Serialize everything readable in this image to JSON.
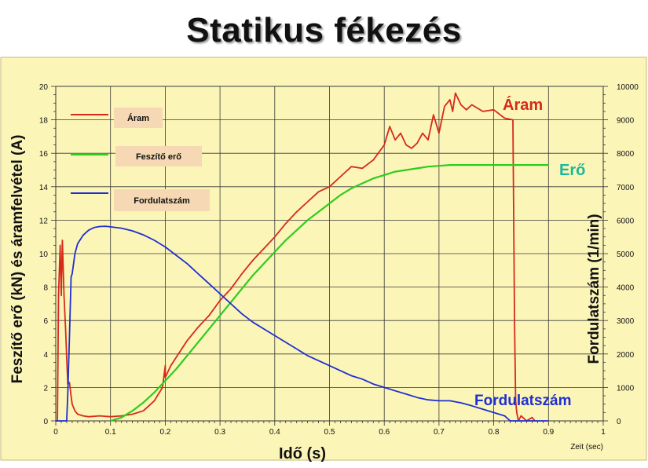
{
  "title": "Statikus fékezés",
  "colors": {
    "panel": "#fcf5b8",
    "plot": "#fcf5b8",
    "grid": "#3a3a3a",
    "legend_box": "#f6d8b4",
    "aram": "#d62a1a",
    "ero": "#2ecc1e",
    "ford": "#1f2fd0",
    "label_ero": "#1cb89a"
  },
  "chart_data": {
    "type": "line",
    "xlabel": "Idő (s)",
    "xlabel_unit": "Zeit (sec)",
    "ylabel_left": "Feszítő erő (kN) és áramfelvétel (A)",
    "ylabel_right": "Fordulatszám (1/min)",
    "xlim": [
      0,
      1
    ],
    "ylim_left": [
      0,
      20
    ],
    "ylim_right": [
      0,
      10000
    ],
    "x_ticks": [
      "0",
      "0.1",
      "0.2",
      "0.3",
      "0.4",
      "0.5",
      "0.6",
      "0.7",
      "0.8",
      "0.9",
      "1"
    ],
    "y_left_ticks": [
      "0",
      "2",
      "4",
      "6",
      "8",
      "10",
      "12",
      "14",
      "16",
      "18",
      "20"
    ],
    "y_right_ticks": [
      "0",
      "1000",
      "2000",
      "3000",
      "4000",
      "5000",
      "6000",
      "7000",
      "8000",
      "9000",
      "10000"
    ],
    "grid": true,
    "legend_position": "top-left",
    "legend": [
      "Áram",
      "Feszítő erő",
      "Fordulatszám"
    ],
    "annotations": [
      "Áram",
      "Erő",
      "Fordulatszám"
    ],
    "series": [
      {
        "name": "Áram",
        "axis": "left",
        "x": [
          0,
          0.003,
          0.005,
          0.008,
          0.01,
          0.012,
          0.015,
          0.018,
          0.02,
          0.022,
          0.025,
          0.028,
          0.03,
          0.035,
          0.04,
          0.05,
          0.06,
          0.08,
          0.1,
          0.12,
          0.14,
          0.16,
          0.18,
          0.195,
          0.2,
          0.2,
          0.21,
          0.22,
          0.24,
          0.26,
          0.28,
          0.3,
          0.32,
          0.34,
          0.36,
          0.38,
          0.4,
          0.42,
          0.44,
          0.46,
          0.48,
          0.5,
          0.52,
          0.54,
          0.56,
          0.58,
          0.6,
          0.61,
          0.62,
          0.63,
          0.64,
          0.65,
          0.66,
          0.67,
          0.68,
          0.69,
          0.7,
          0.71,
          0.72,
          0.725,
          0.73,
          0.74,
          0.75,
          0.76,
          0.78,
          0.8,
          0.82,
          0.835,
          0.838,
          0.84,
          0.842,
          0.845,
          0.85,
          0.86,
          0.87,
          0.875
        ],
        "values": [
          0,
          0,
          7.5,
          10.5,
          7.5,
          10.8,
          7.5,
          5.5,
          3.8,
          2.2,
          2.3,
          1.5,
          1.0,
          0.6,
          0.4,
          0.3,
          0.25,
          0.3,
          0.25,
          0.3,
          0.4,
          0.6,
          1.2,
          2.0,
          3.3,
          2.6,
          3.3,
          3.8,
          4.8,
          5.6,
          6.3,
          7.2,
          7.9,
          8.8,
          9.6,
          10.3,
          11.0,
          11.8,
          12.5,
          13.1,
          13.7,
          14.0,
          14.6,
          15.2,
          15.1,
          15.6,
          16.5,
          17.6,
          16.8,
          17.2,
          16.5,
          16.3,
          16.6,
          17.2,
          16.8,
          18.3,
          17.2,
          18.8,
          19.2,
          18.5,
          19.6,
          18.9,
          18.6,
          18.9,
          18.5,
          18.6,
          18.1,
          18.0,
          5.8,
          1.2,
          0.5,
          0.0,
          0.3,
          0.0,
          0.2,
          0.0
        ]
      },
      {
        "name": "Feszítő erő",
        "axis": "left",
        "x": [
          0.1,
          0.12,
          0.14,
          0.16,
          0.18,
          0.2,
          0.22,
          0.24,
          0.26,
          0.28,
          0.3,
          0.32,
          0.34,
          0.36,
          0.38,
          0.4,
          0.42,
          0.44,
          0.46,
          0.48,
          0.5,
          0.52,
          0.54,
          0.56,
          0.58,
          0.6,
          0.62,
          0.64,
          0.66,
          0.68,
          0.7,
          0.72,
          0.74,
          0.76,
          0.78,
          0.8,
          0.82,
          0.84,
          0.86,
          0.88,
          0.9
        ],
        "values": [
          0.0,
          0.2,
          0.6,
          1.1,
          1.7,
          2.4,
          3.1,
          3.9,
          4.7,
          5.5,
          6.3,
          7.1,
          7.9,
          8.7,
          9.4,
          10.1,
          10.8,
          11.4,
          12.0,
          12.5,
          13.0,
          13.5,
          13.9,
          14.2,
          14.5,
          14.7,
          14.9,
          15.0,
          15.1,
          15.2,
          15.25,
          15.3,
          15.3,
          15.3,
          15.3,
          15.3,
          15.3,
          15.3,
          15.3,
          15.3,
          15.3
        ]
      },
      {
        "name": "Fordulatszám",
        "axis": "right",
        "x": [
          0,
          0.02,
          0.022,
          0.025,
          0.028,
          0.03,
          0.035,
          0.04,
          0.05,
          0.06,
          0.07,
          0.08,
          0.09,
          0.1,
          0.12,
          0.14,
          0.16,
          0.18,
          0.2,
          0.22,
          0.24,
          0.26,
          0.28,
          0.3,
          0.32,
          0.34,
          0.36,
          0.38,
          0.4,
          0.42,
          0.44,
          0.46,
          0.48,
          0.5,
          0.52,
          0.54,
          0.56,
          0.58,
          0.6,
          0.62,
          0.64,
          0.66,
          0.68,
          0.7,
          0.72,
          0.74,
          0.76,
          0.78,
          0.8,
          0.82,
          0.83,
          0.84,
          0.85,
          0.9
        ],
        "values": [
          0,
          0,
          800,
          2500,
          4300,
          4400,
          5000,
          5300,
          5550,
          5700,
          5780,
          5810,
          5820,
          5800,
          5760,
          5680,
          5560,
          5400,
          5200,
          4950,
          4700,
          4400,
          4100,
          3800,
          3500,
          3200,
          2950,
          2750,
          2550,
          2350,
          2150,
          1950,
          1800,
          1650,
          1500,
          1350,
          1250,
          1100,
          1000,
          900,
          800,
          700,
          630,
          600,
          600,
          540,
          450,
          350,
          250,
          150,
          0,
          0,
          0,
          0
        ]
      }
    ]
  }
}
